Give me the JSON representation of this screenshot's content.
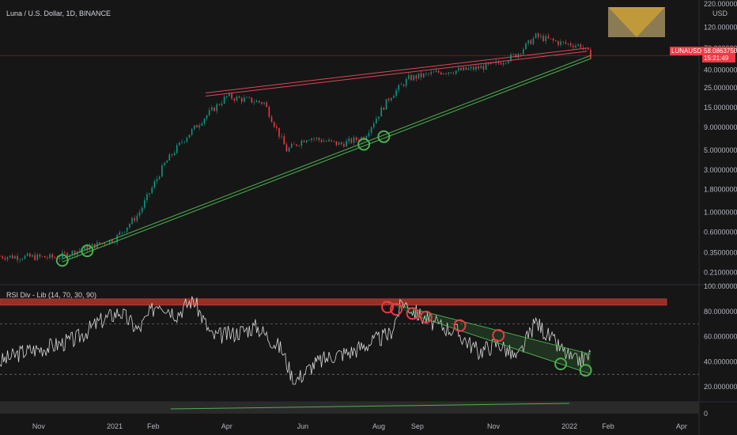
{
  "header": {
    "symbol_title": "Luna / U.S. Dollar, 1D, BINANCE",
    "indicator_title": "RSI Div - Lib (14, 70, 30, 90)",
    "currency": "USD"
  },
  "price_tag": {
    "symbol": "LUNAUSD",
    "price": "58.0863750",
    "countdown": "15:21:49"
  },
  "colors": {
    "background": "#161616",
    "up": "#089981",
    "down": "#f23645",
    "rsi_line": "#d8d8d8",
    "support": "#4caf50",
    "resistance": "#e0455a",
    "band": "#c0392b"
  },
  "chart_data": [
    {
      "type": "candlestick",
      "scale": "log",
      "ylim": [
        0.17,
        220
      ],
      "y_ticks": [
        "220.0000000",
        "120.0000000",
        "70.0000000",
        "40.0000000",
        "25.0000000",
        "15.0000000",
        "9.0000000",
        "5.0000000",
        "3.0000000",
        "1.8000000",
        "1.0000000",
        "0.6000000",
        "0.3500000",
        "0.2100000"
      ],
      "x_ticks": [
        "Nov",
        "2021",
        "Feb",
        "Apr",
        "Jun",
        "Aug",
        "Sep",
        "Nov",
        "2022",
        "Feb",
        "Apr"
      ],
      "series": [
        {
          "x": [
            "2020-10-01",
            "2020-11-15",
            "2021-01-01",
            "2021-01-20",
            "2021-02-10",
            "2021-02-25",
            "2021-03-15",
            "2021-04-01",
            "2021-05-01",
            "2021-05-19",
            "2021-06-05",
            "2021-07-01",
            "2021-07-20",
            "2021-08-10",
            "2021-08-25",
            "2021-09-20",
            "2021-10-10",
            "2021-11-01",
            "2021-11-20",
            "2021-12-05",
            "2021-12-25",
            "2022-01-10",
            "2022-01-18"
          ],
          "values": [
            0.32,
            0.31,
            0.5,
            0.95,
            3.5,
            6.5,
            12,
            20,
            17,
            5.0,
            7,
            5.8,
            7,
            20,
            32,
            38,
            40,
            45,
            60,
            95,
            80,
            75,
            58
          ]
        }
      ],
      "trendlines": [
        {
          "name": "support",
          "from": [
            "2020-11-20",
            0.3
          ],
          "to": [
            "2022-01-18",
            58
          ]
        },
        {
          "name": "resistance",
          "from": [
            "2021-03-15",
            22
          ],
          "to": [
            "2022-01-15",
            70
          ]
        }
      ],
      "marked_points": [
        "2020-11-20",
        "2020-12-10",
        "2021-07-20",
        "2021-08-05"
      ]
    },
    {
      "type": "line",
      "ylim": [
        10,
        100
      ],
      "y_ticks": [
        "100.0000000",
        "80.0000000",
        "60.0000000",
        "40.0000000",
        "20.0000000"
      ],
      "levels": [
        70,
        30
      ],
      "overbought_band": [
        85,
        90
      ],
      "series": [
        {
          "x": [
            "2020-10-01",
            "2020-10-20",
            "2020-11-10",
            "2020-12-01",
            "2020-12-20",
            "2021-01-05",
            "2021-01-20",
            "2021-02-05",
            "2021-02-20",
            "2021-03-05",
            "2021-03-20",
            "2021-04-05",
            "2021-04-25",
            "2021-05-15",
            "2021-05-25",
            "2021-06-10",
            "2021-06-25",
            "2021-07-10",
            "2021-07-25",
            "2021-08-10",
            "2021-08-20",
            "2021-09-01",
            "2021-09-15",
            "2021-10-01",
            "2021-10-20",
            "2021-11-05",
            "2021-11-20",
            "2021-12-05",
            "2021-12-20",
            "2022-01-05",
            "2022-01-18"
          ],
          "values": [
            40,
            48,
            52,
            58,
            72,
            80,
            65,
            88,
            78,
            90,
            60,
            62,
            68,
            50,
            24,
            38,
            45,
            48,
            55,
            62,
            88,
            78,
            70,
            65,
            48,
            55,
            42,
            72,
            55,
            40,
            45
          ]
        }
      ],
      "divergence_line": {
        "from": [
          "2021-08-05",
          88
        ],
        "to": [
          "2022-01-18",
          46
        ]
      },
      "marked_points_red": [
        "2021-08-08",
        "2021-08-15",
        "2021-08-28",
        "2021-09-08",
        "2021-10-05",
        "2021-11-05"
      ],
      "marked_points_green": [
        "2021-12-25",
        "2022-01-14"
      ]
    }
  ],
  "volume_pane": {
    "y_tick": "0"
  }
}
